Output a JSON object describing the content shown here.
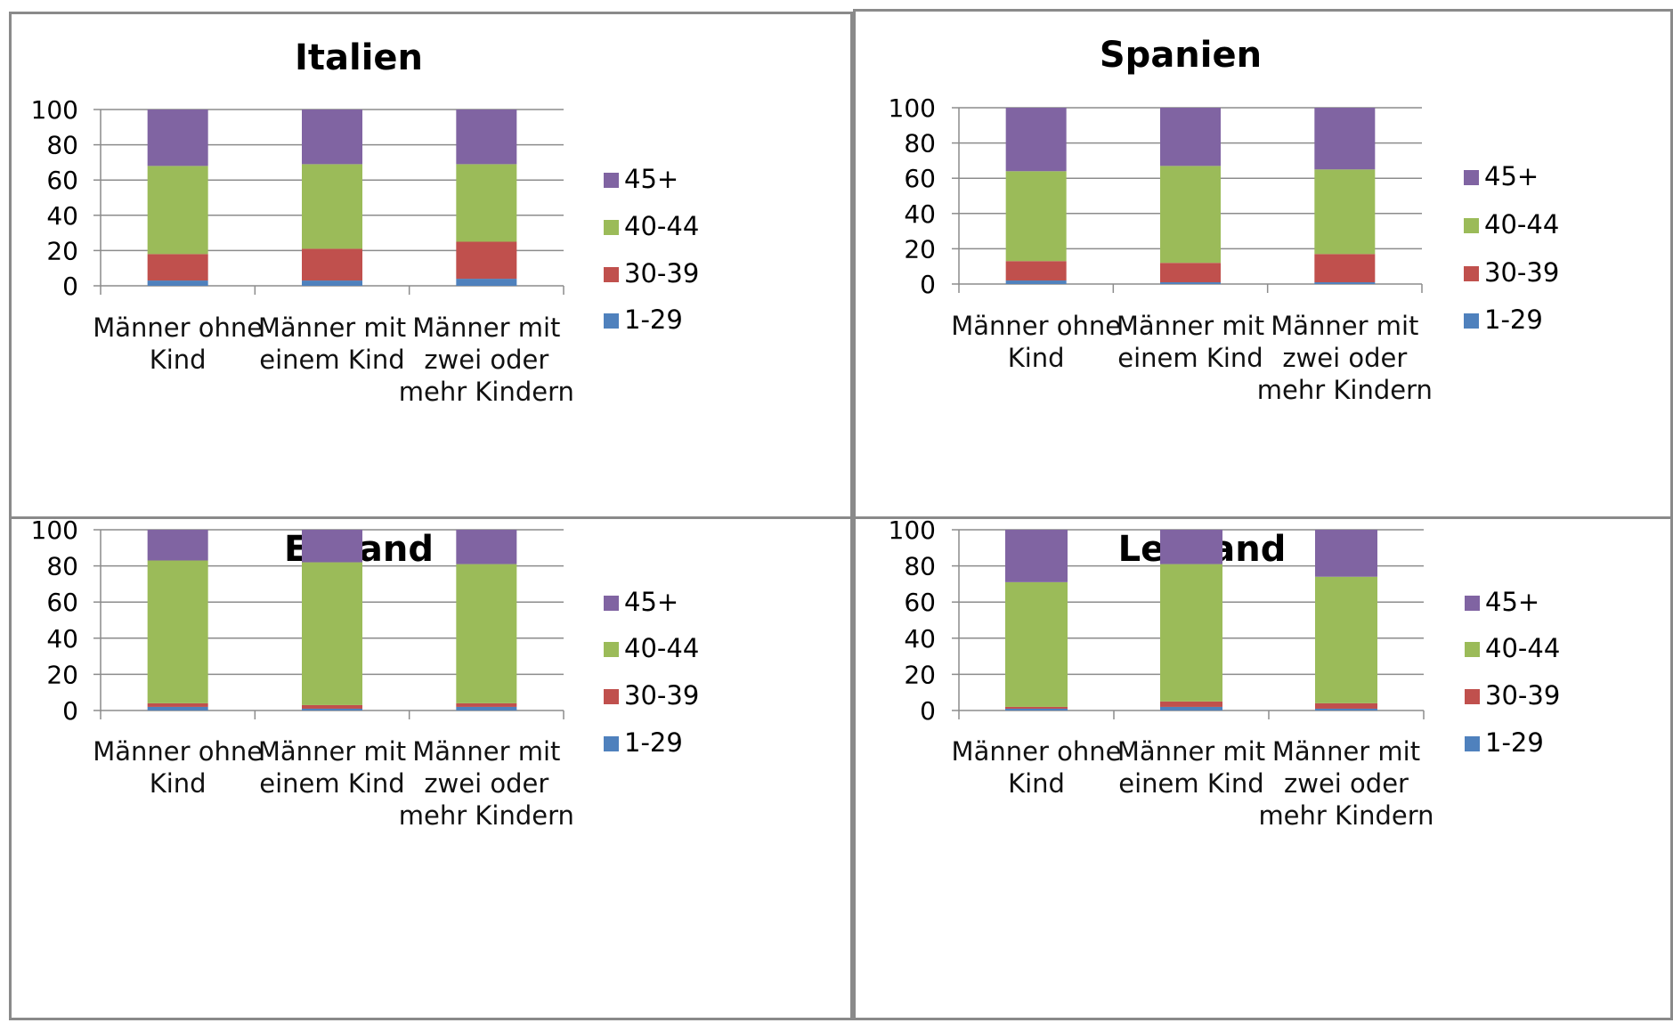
{
  "chart_data": [
    {
      "type": "bar",
      "title": "Italien",
      "categories": [
        [
          "Männer ohne",
          "Kind"
        ],
        [
          "Männer mit",
          "einem Kind"
        ],
        [
          "Männer mit",
          "zwei oder",
          "mehr Kindern"
        ]
      ],
      "ylim": [
        0,
        100
      ],
      "yticks": [
        "0",
        "20",
        "40",
        "60",
        "80",
        "100"
      ],
      "stacked": true,
      "grid": true,
      "legend_position": "right",
      "series": [
        {
          "name": "1-29",
          "color": "#4f81bd",
          "values": [
            3,
            3,
            4
          ]
        },
        {
          "name": "30-39",
          "color": "#c0504d",
          "values": [
            15,
            18,
            21
          ]
        },
        {
          "name": "40-44",
          "color": "#9bbb59",
          "values": [
            50,
            48,
            44
          ]
        },
        {
          "name": "45+",
          "color": "#8064a2",
          "values": [
            32,
            31,
            31
          ]
        }
      ]
    },
    {
      "type": "bar",
      "title": "Spanien",
      "categories": [
        [
          "Männer ohne",
          "Kind"
        ],
        [
          "Männer mit",
          "einem Kind"
        ],
        [
          "Männer mit",
          "zwei oder",
          "mehr Kindern"
        ]
      ],
      "ylim": [
        0,
        100
      ],
      "yticks": [
        "0",
        "20",
        "40",
        "60",
        "80",
        "100"
      ],
      "stacked": true,
      "grid": true,
      "legend_position": "right",
      "series": [
        {
          "name": "1-29",
          "color": "#4f81bd",
          "values": [
            2,
            1,
            1
          ]
        },
        {
          "name": "30-39",
          "color": "#c0504d",
          "values": [
            11,
            11,
            16
          ]
        },
        {
          "name": "40-44",
          "color": "#9bbb59",
          "values": [
            51,
            55,
            48
          ]
        },
        {
          "name": "45+",
          "color": "#8064a2",
          "values": [
            36,
            33,
            35
          ]
        }
      ]
    },
    {
      "type": "bar",
      "title": "Estland",
      "categories": [
        [
          "Männer ohne",
          "Kind"
        ],
        [
          "Männer mit",
          "einem Kind"
        ],
        [
          "Männer mit",
          "zwei oder",
          "mehr Kindern"
        ]
      ],
      "ylim": [
        0,
        100
      ],
      "yticks": [
        "0",
        "20",
        "40",
        "60",
        "80",
        "100"
      ],
      "stacked": true,
      "grid": true,
      "legend_position": "right",
      "series": [
        {
          "name": "1-29",
          "color": "#4f81bd",
          "values": [
            2,
            1,
            2
          ]
        },
        {
          "name": "30-39",
          "color": "#c0504d",
          "values": [
            2,
            2,
            2
          ]
        },
        {
          "name": "40-44",
          "color": "#9bbb59",
          "values": [
            79,
            79,
            77
          ]
        },
        {
          "name": "45+",
          "color": "#8064a2",
          "values": [
            17,
            18,
            19
          ]
        }
      ]
    },
    {
      "type": "bar",
      "title": "Lettland",
      "categories": [
        [
          "Männer ohne",
          "Kind"
        ],
        [
          "Männer mit",
          "einem Kind"
        ],
        [
          "Männer mit",
          "zwei oder",
          "mehr Kindern"
        ]
      ],
      "ylim": [
        0,
        100
      ],
      "yticks": [
        "0",
        "20",
        "40",
        "60",
        "80",
        "100"
      ],
      "stacked": true,
      "grid": true,
      "legend_position": "right",
      "series": [
        {
          "name": "1-29",
          "color": "#4f81bd",
          "values": [
            1,
            2,
            1
          ]
        },
        {
          "name": "30-39",
          "color": "#c0504d",
          "values": [
            1,
            3,
            3
          ]
        },
        {
          "name": "40-44",
          "color": "#9bbb59",
          "values": [
            69,
            76,
            70
          ]
        },
        {
          "name": "45+",
          "color": "#8064a2",
          "values": [
            29,
            19,
            26
          ]
        }
      ]
    }
  ]
}
